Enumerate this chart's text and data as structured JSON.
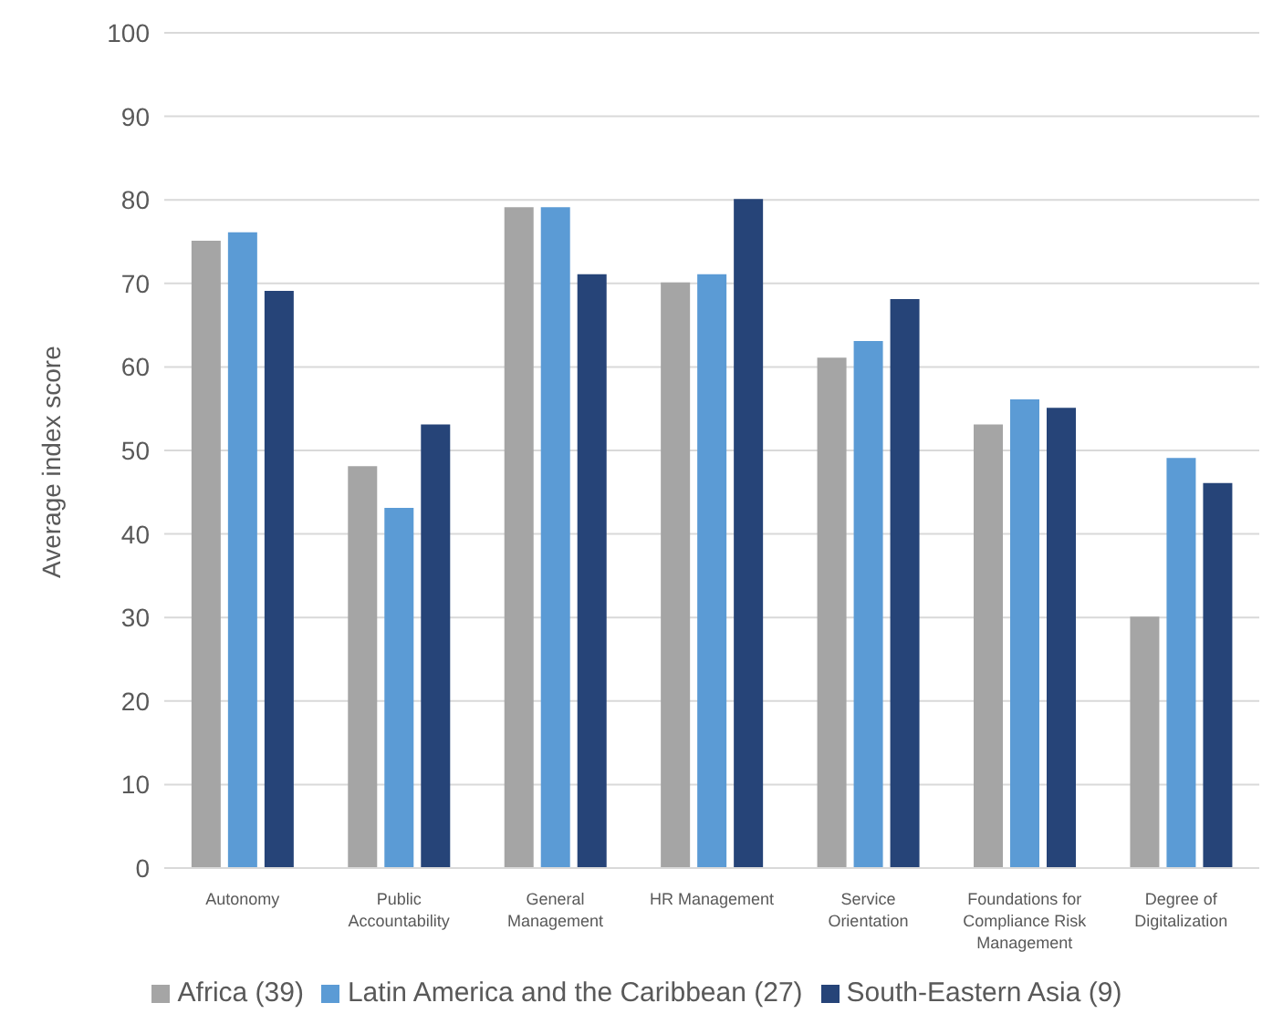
{
  "chart_data": {
    "type": "bar",
    "ylabel": "Average index score",
    "categories": [
      "Autonomy",
      "Public Accountability",
      "General Management",
      "HR Management",
      "Service Orientation",
      "Foundations for Compliance Risk Management",
      "Degree of Digitalization"
    ],
    "series": [
      {
        "name": "Africa (39)",
        "color": "#a5a5a5",
        "values": [
          75,
          48,
          79,
          70,
          61,
          53,
          30
        ]
      },
      {
        "name": "Latin America and the Caribbean (27)",
        "color": "#5b9bd5",
        "values": [
          76,
          43,
          79,
          71,
          63,
          56,
          49
        ]
      },
      {
        "name": "South-Eastern Asia (9)",
        "color": "#264478",
        "values": [
          69,
          53,
          71,
          80,
          68,
          55,
          46
        ]
      }
    ],
    "ylim": [
      0,
      100
    ],
    "yticks": [
      0,
      10,
      20,
      30,
      40,
      50,
      60,
      70,
      80,
      90,
      100
    ],
    "grid": "y",
    "legend": "bottom"
  }
}
